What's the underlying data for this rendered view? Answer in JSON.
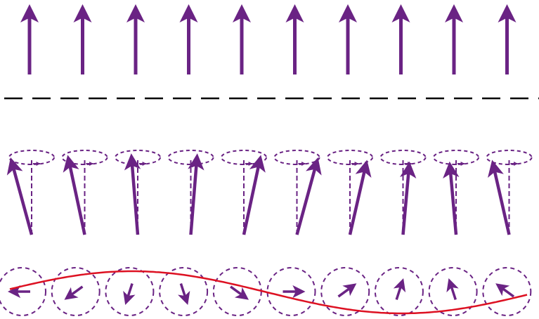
{
  "colors": {
    "arrow": "#6a2384",
    "guide": "#6a2384",
    "divider": "#000000",
    "wave": "#dd1122",
    "background": "#ffffff"
  },
  "rows": {
    "aligned_spins": {
      "count": 10,
      "direction": "up"
    },
    "precessing_spins": {
      "count": 10,
      "tilt_pattern": "cone-precession",
      "guides": [
        "dashed-ellipse",
        "dashed-axis",
        "precession-direction-arrow"
      ]
    },
    "spin_wave_top_view": {
      "count": 10,
      "phase_step_degrees": 36,
      "start_direction": "left",
      "guides": [
        "dashed-circle"
      ],
      "wave": "sinusoid"
    }
  },
  "divider": {
    "style": "dashed"
  },
  "icons": [
    "spin-arrow-icon",
    "precession-cone-icon",
    "phase-arrow-icon"
  ]
}
